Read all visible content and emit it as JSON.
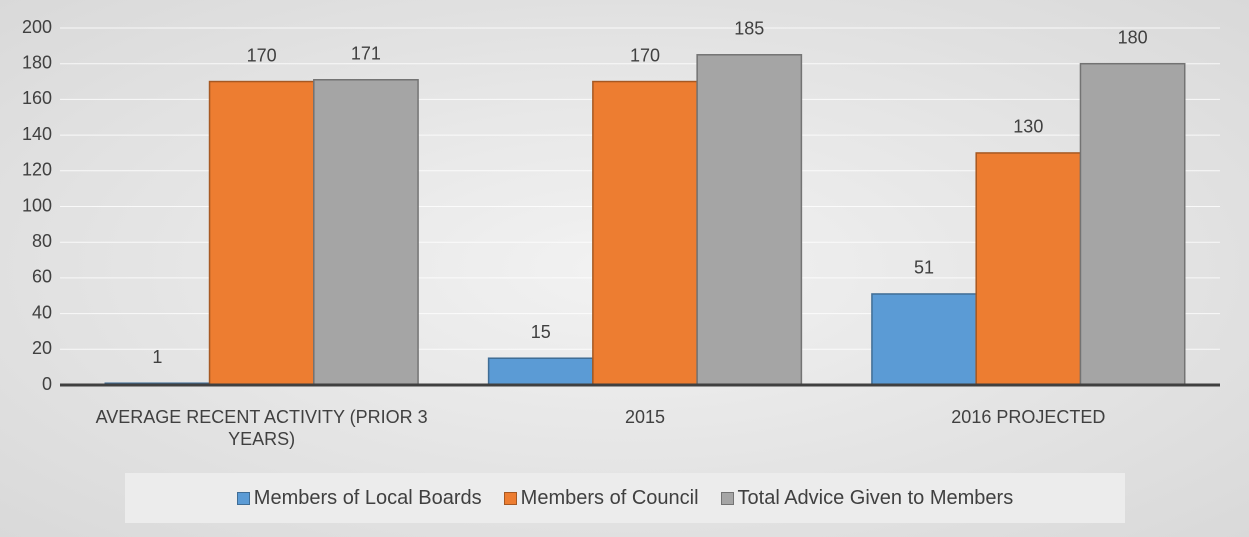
{
  "chart_data": {
    "type": "bar",
    "categories": [
      "AVERAGE RECENT ACTIVITY (PRIOR 3 YEARS)",
      "2015",
      "2016 PROJECTED"
    ],
    "series": [
      {
        "name": "Members of Local Boards",
        "color": "#5b9bd5",
        "values": [
          1,
          15,
          51
        ]
      },
      {
        "name": "Members of Council",
        "color": "#ed7d31",
        "values": [
          170,
          170,
          130
        ]
      },
      {
        "name": "Total Advice Given to Members",
        "color": "#a5a5a5",
        "values": [
          171,
          185,
          180
        ]
      }
    ],
    "ylim": [
      0,
      200
    ],
    "yticks": [
      0,
      20,
      40,
      60,
      80,
      100,
      120,
      140,
      160,
      180,
      200
    ],
    "grid": true,
    "legend": "bottom"
  }
}
